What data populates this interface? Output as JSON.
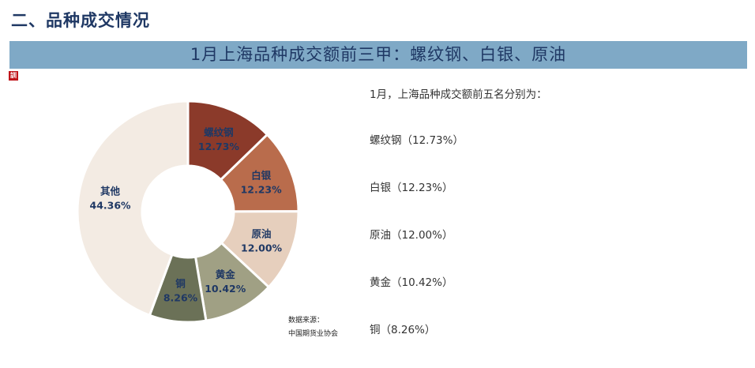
{
  "section_title": "二、品种成交情况",
  "banner_title": "1月上海品种成交额前三甲：螺纹钢、白银、原油",
  "logo_text": "訓",
  "source": {
    "line1": "数据来源：",
    "line2": "中国期货业协会"
  },
  "list": {
    "intro": "1月，上海品种成交额前五名分别为：",
    "items": [
      "螺纹钢（12.73%）",
      "白银（12.23%）",
      "原油（12.00%）",
      "黄金（10.42%）",
      "铜（8.26%）"
    ]
  },
  "chart_data": {
    "type": "pie",
    "style": "donut",
    "categories": [
      "螺纹钢",
      "白银",
      "原油",
      "黄金",
      "铜",
      "其他"
    ],
    "values": [
      12.73,
      12.23,
      12.0,
      10.42,
      8.26,
      44.36
    ],
    "labels": [
      "12.73%",
      "12.23%",
      "12.00%",
      "10.42%",
      "8.26%",
      "44.36%"
    ],
    "colors": [
      "#8b3a2a",
      "#b96c4c",
      "#e6cfbd",
      "#a0a084",
      "#6b7157",
      "#f3ebe3"
    ],
    "legend": "none"
  }
}
